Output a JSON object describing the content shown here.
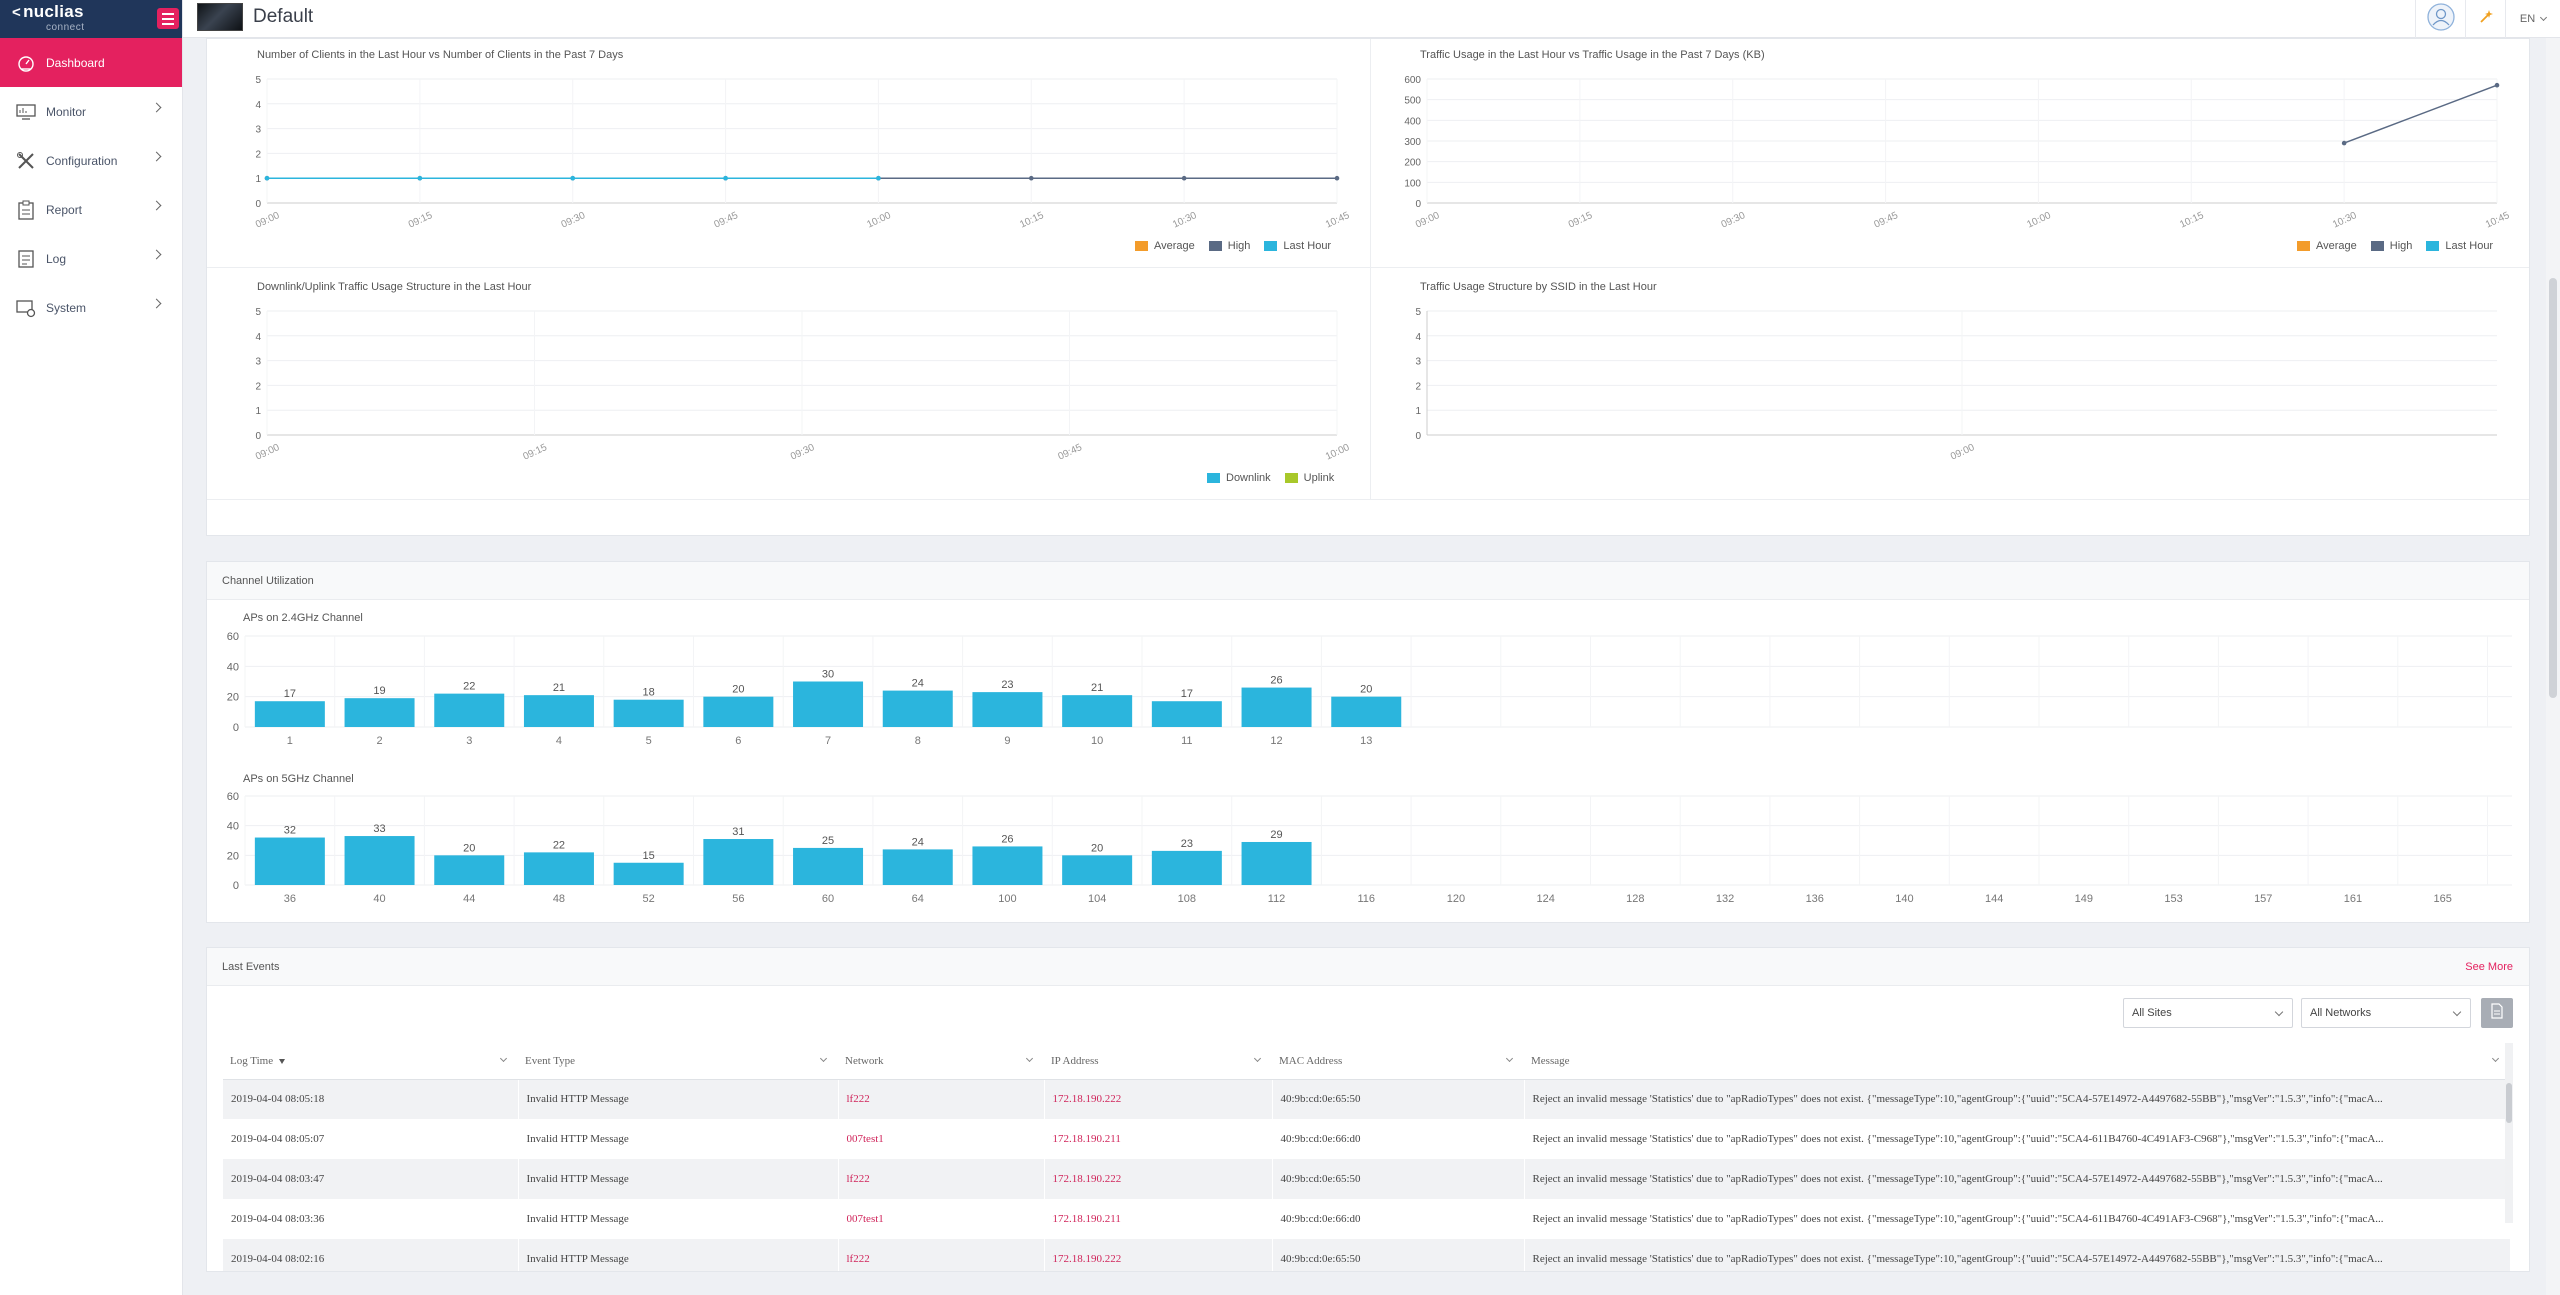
{
  "sidebar": {
    "brand": "nuclias",
    "brand_sub": "connect",
    "items": [
      {
        "label": "Dashboard",
        "icon": "dashboard-icon",
        "active": true
      },
      {
        "label": "Monitor",
        "icon": "monitor-icon"
      },
      {
        "label": "Configuration",
        "icon": "configuration-icon"
      },
      {
        "label": "Report",
        "icon": "report-icon"
      },
      {
        "label": "Log",
        "icon": "log-icon"
      },
      {
        "label": "System",
        "icon": "system-icon"
      }
    ]
  },
  "header": {
    "site_name": "Default",
    "language": "EN"
  },
  "charts": {
    "legend": {
      "average": "Average",
      "high": "High",
      "last_hour": "Last Hour",
      "downlink": "Downlink",
      "uplink": "Uplink"
    },
    "colors": {
      "average": "#f39c2b",
      "high": "#5a6a84",
      "last_hour": "#2bb5dd",
      "downlink": "#2bb5dd",
      "uplink": "#a8c82a"
    }
  },
  "chart_data": [
    {
      "type": "line",
      "title": "Number of Clients in the Last Hour vs Number of Clients in the Past 7 Days",
      "x": [
        "09:00",
        "09:15",
        "09:30",
        "09:45",
        "10:00",
        "10:15",
        "10:30",
        "10:45"
      ],
      "ylim": [
        0,
        5
      ],
      "yticks": [
        0,
        1,
        2,
        3,
        4,
        5
      ],
      "series": [
        {
          "name": "High",
          "values": [
            1,
            1,
            1,
            1,
            1,
            1,
            1,
            1
          ]
        },
        {
          "name": "Last Hour",
          "values": [
            1,
            1,
            1,
            1,
            1,
            null,
            null,
            null
          ]
        }
      ]
    },
    {
      "type": "line",
      "title": "Traffic Usage in the Last Hour vs Traffic Usage in the Past 7 Days (KB)",
      "x": [
        "09:00",
        "09:15",
        "09:30",
        "09:45",
        "10:00",
        "10:15",
        "10:30",
        "10:45"
      ],
      "ylim": [
        0,
        600
      ],
      "yticks": [
        0,
        100,
        200,
        300,
        400,
        500,
        600
      ],
      "series": [
        {
          "name": "High",
          "values": [
            null,
            null,
            null,
            null,
            null,
            null,
            290,
            570
          ]
        }
      ]
    },
    {
      "type": "line",
      "title": "Downlink/Uplink Traffic Usage Structure in the Last Hour",
      "x": [
        "09:00",
        "09:15",
        "09:30",
        "09:45",
        "10:00"
      ],
      "ylim": [
        0,
        5
      ],
      "yticks": [
        0,
        1,
        2,
        3,
        4,
        5
      ],
      "series": []
    },
    {
      "type": "line",
      "title": "Traffic Usage Structure by SSID in the Last Hour",
      "x": [
        "09:00"
      ],
      "ylim": [
        0,
        5
      ],
      "yticks": [
        0,
        1,
        2,
        3,
        4,
        5
      ],
      "series": []
    },
    {
      "type": "bar",
      "title": "APs on 2.4GHz Channel",
      "categories": [
        "1",
        "2",
        "3",
        "4",
        "5",
        "6",
        "7",
        "8",
        "9",
        "10",
        "11",
        "12",
        "13"
      ],
      "values": [
        17,
        19,
        22,
        21,
        18,
        20,
        30,
        24,
        23,
        21,
        17,
        26,
        20
      ],
      "ylim": [
        0,
        60
      ],
      "yticks": [
        0,
        20,
        40,
        60
      ],
      "color": "#2bb5dd"
    },
    {
      "type": "bar",
      "title": "APs on 5GHz Channel",
      "categories": [
        "36",
        "40",
        "44",
        "48",
        "52",
        "56",
        "60",
        "64",
        "100",
        "104",
        "108",
        "112",
        "116",
        "120",
        "124",
        "128",
        "132",
        "136",
        "140",
        "144",
        "149",
        "153",
        "157",
        "161",
        "165"
      ],
      "values": [
        32,
        33,
        20,
        22,
        15,
        31,
        25,
        24,
        26,
        20,
        23,
        29,
        null,
        null,
        null,
        null,
        null,
        null,
        null,
        null,
        null,
        null,
        null,
        null,
        null
      ],
      "ylim": [
        0,
        60
      ],
      "yticks": [
        0,
        20,
        40,
        60
      ],
      "color": "#2bb5dd"
    }
  ],
  "channel_utilization": {
    "title": "Channel Utilization"
  },
  "events": {
    "title": "Last Events",
    "see_more": "See More",
    "site_filter": "All Sites",
    "network_filter": "All Networks",
    "columns": [
      "Log Time",
      "Event Type",
      "Network",
      "IP Address",
      "MAC Address",
      "Message"
    ],
    "rows": [
      [
        "2019-04-04  08:05:18",
        "Invalid  HTTP  Message",
        "lf222",
        "172.18.190.222",
        "40:9b:cd:0e:65:50",
        "Reject  an  invalid  message  'Statistics'  due  to  \"apRadioTypes\"  does  not  exist.  {\"messageType\":10,\"agentGroup\":{\"uuid\":\"5CA4-57E14972-A4497682-55BB\"},\"msgVer\":\"1.5.3\",\"info\":{\"macA..."
      ],
      [
        "2019-04-04  08:05:07",
        "Invalid  HTTP  Message",
        "007test1",
        "172.18.190.211",
        "40:9b:cd:0e:66:d0",
        "Reject  an  invalid  message  'Statistics'  due  to  \"apRadioTypes\"  does  not  exist.  {\"messageType\":10,\"agentGroup\":{\"uuid\":\"5CA4-611B4760-4C491AF3-C968\"},\"msgVer\":\"1.5.3\",\"info\":{\"macA..."
      ],
      [
        "2019-04-04  08:03:47",
        "Invalid  HTTP  Message",
        "lf222",
        "172.18.190.222",
        "40:9b:cd:0e:65:50",
        "Reject  an  invalid  message  'Statistics'  due  to  \"apRadioTypes\"  does  not  exist.  {\"messageType\":10,\"agentGroup\":{\"uuid\":\"5CA4-57E14972-A4497682-55BB\"},\"msgVer\":\"1.5.3\",\"info\":{\"macA..."
      ],
      [
        "2019-04-04  08:03:36",
        "Invalid  HTTP  Message",
        "007test1",
        "172.18.190.211",
        "40:9b:cd:0e:66:d0",
        "Reject  an  invalid  message  'Statistics'  due  to  \"apRadioTypes\"  does  not  exist.  {\"messageType\":10,\"agentGroup\":{\"uuid\":\"5CA4-611B4760-4C491AF3-C968\"},\"msgVer\":\"1.5.3\",\"info\":{\"macA..."
      ],
      [
        "2019-04-04  08:02:16",
        "Invalid  HTTP  Message",
        "lf222",
        "172.18.190.222",
        "40:9b:cd:0e:65:50",
        "Reject  an  invalid  message  'Statistics'  due  to  \"apRadioTypes\"  does  not  exist.  {\"messageType\":10,\"agentGroup\":{\"uuid\":\"5CA4-57E14972-A4497682-55BB\"},\"msgVer\":\"1.5.3\",\"info\":{\"macA..."
      ]
    ]
  }
}
